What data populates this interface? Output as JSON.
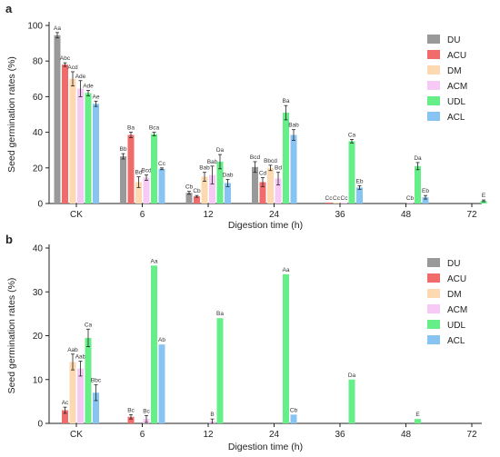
{
  "colors": {
    "DU": "#999999",
    "ACU": "#f26b6b",
    "DM": "#fcd9b0",
    "ACM": "#f7c9f5",
    "UDL": "#66ee88",
    "ACL": "#88c4f2"
  },
  "chart_data": [
    {
      "panel": "a",
      "type": "bar",
      "xlabel": "Digestion time (h)",
      "ylabel": "Seed germination rates (%)",
      "ylim": [
        0,
        100
      ],
      "yticks": [
        0,
        20,
        40,
        60,
        80,
        100
      ],
      "categories": [
        "CK",
        "6",
        "12",
        "24",
        "36",
        "48",
        "72"
      ],
      "legend_position": "top-right",
      "series": [
        {
          "name": "DU",
          "values": [
            94.5,
            26.5,
            6,
            20.5,
            null,
            null,
            null
          ],
          "errors": [
            1.5,
            1.5,
            0.8,
            3,
            null,
            null,
            null
          ],
          "labels": [
            "Aa",
            "Bb",
            "Cb",
            "Bcd",
            "",
            "",
            ""
          ]
        },
        {
          "name": "ACU",
          "values": [
            78,
            38.5,
            4,
            12,
            0.5,
            null,
            null
          ],
          "errors": [
            1,
            1.5,
            0.5,
            2.5,
            null,
            null,
            null
          ],
          "labels": [
            "Abc",
            "Ba",
            "Cb",
            "Cd",
            "Cc",
            "",
            ""
          ]
        },
        {
          "name": "DM",
          "values": [
            70,
            12,
            15,
            20,
            0.5,
            null,
            null
          ],
          "errors": [
            4,
            3,
            2.5,
            1.5,
            null,
            null,
            null
          ],
          "labels": [
            "Acd",
            "Bd",
            "Bab",
            "Bbcd",
            "Cc",
            "",
            ""
          ]
        },
        {
          "name": "ACM",
          "values": [
            64.5,
            14.5,
            16,
            14,
            0.5,
            0.5,
            null
          ],
          "errors": [
            4.5,
            1.5,
            5,
            3.5,
            null,
            null,
            null
          ],
          "labels": [
            "Ade",
            "Bcd",
            "Bab",
            "Bd",
            "Cc",
            "Cb",
            ""
          ]
        },
        {
          "name": "UDL",
          "values": [
            62,
            39,
            23.5,
            51,
            35,
            21,
            1.5
          ],
          "errors": [
            1.5,
            1,
            4,
            4,
            1,
            2,
            0.5
          ],
          "labels": [
            "Ade",
            "Bca",
            "Da",
            "Ba",
            "Ca",
            "Da",
            "E"
          ]
        },
        {
          "name": "ACL",
          "values": [
            56,
            19.5,
            11.5,
            38.5,
            9,
            3.5,
            null
          ],
          "errors": [
            1.5,
            0.5,
            2,
            3,
            1,
            1,
            null
          ],
          "labels": [
            "Ae",
            "Cc",
            "Dab",
            "Bab",
            "Eb",
            "Eb",
            ""
          ]
        }
      ]
    },
    {
      "panel": "b",
      "type": "bar",
      "xlabel": "Digestion time (h)",
      "ylabel": "Seed germination rates (%)",
      "ylim": [
        0,
        40
      ],
      "yticks": [
        0,
        10,
        20,
        30,
        40
      ],
      "categories": [
        "CK",
        "6",
        "12",
        "24",
        "36",
        "48",
        "72"
      ],
      "legend_position": "top-right",
      "series": [
        {
          "name": "DU",
          "values": [
            null,
            null,
            null,
            null,
            null,
            null,
            null
          ],
          "errors": [
            null,
            null,
            null,
            null,
            null,
            null,
            null
          ],
          "labels": [
            "",
            "",
            "",
            "",
            "",
            "",
            ""
          ]
        },
        {
          "name": "ACU",
          "values": [
            3,
            1.5,
            null,
            null,
            null,
            null,
            null
          ],
          "errors": [
            0.7,
            0.5,
            null,
            null,
            null,
            null,
            null
          ],
          "labels": [
            "Ac",
            "Bc",
            "",
            "",
            "",
            "",
            ""
          ]
        },
        {
          "name": "DM",
          "values": [
            14,
            null,
            null,
            null,
            null,
            null,
            null
          ],
          "errors": [
            1.8,
            null,
            null,
            null,
            null,
            null,
            null
          ],
          "labels": [
            "Aab",
            "",
            "",
            "",
            "",
            "",
            ""
          ]
        },
        {
          "name": "ACM",
          "values": [
            12.5,
            1,
            0.5,
            null,
            null,
            null,
            null
          ],
          "errors": [
            1.7,
            0.8,
            0.5,
            null,
            null,
            null,
            null
          ],
          "labels": [
            "Aab",
            "Bc",
            "B",
            "",
            "",
            "",
            ""
          ]
        },
        {
          "name": "UDL",
          "values": [
            19.5,
            36,
            24,
            34,
            10,
            1,
            null
          ],
          "errors": [
            2,
            null,
            null,
            null,
            null,
            null,
            null
          ],
          "labels": [
            "Ca",
            "Aa",
            "Ba",
            "Aa",
            "Da",
            "E",
            ""
          ]
        },
        {
          "name": "ACL",
          "values": [
            7,
            18,
            null,
            2,
            null,
            null,
            null
          ],
          "errors": [
            1.8,
            null,
            null,
            null,
            null,
            null,
            null
          ],
          "labels": [
            "Bbc",
            "Ab",
            "",
            "Cb",
            "",
            "",
            ""
          ]
        }
      ]
    }
  ]
}
